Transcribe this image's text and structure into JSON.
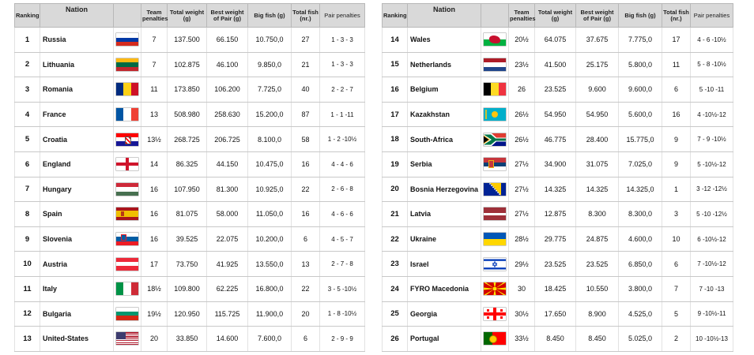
{
  "headers": {
    "ranking": "Ranking",
    "nation": "Nation",
    "team_penalties": "Team penalties",
    "total_weight": "Total weight (g)",
    "best_weight_pair": "Best weight of Pair (g)",
    "big_fish": "Big fish (g)",
    "total_fish": "Total fish (nr.)",
    "pair_penalties": "Pair penalties"
  },
  "left_table": [
    {
      "rank": "1",
      "nation": "Russia",
      "flag": "russia-flag",
      "team_penalties": "7",
      "total_weight": "137.500",
      "best_pair": "66.150",
      "big_fish": "10.750,0",
      "total_fish": "27",
      "pair_penalties": "1 - 3 - 3"
    },
    {
      "rank": "2",
      "nation": "Lithuania",
      "flag": "lithuania-flag",
      "team_penalties": "7",
      "total_weight": "102.875",
      "best_pair": "46.100",
      "big_fish": "9.850,0",
      "total_fish": "21",
      "pair_penalties": "1 - 3 - 3"
    },
    {
      "rank": "3",
      "nation": "Romania",
      "flag": "romania-flag",
      "team_penalties": "11",
      "total_weight": "173.850",
      "best_pair": "106.200",
      "big_fish": "7.725,0",
      "total_fish": "40",
      "pair_penalties": "2 - 2 - 7"
    },
    {
      "rank": "4",
      "nation": "France",
      "flag": "france-flag",
      "team_penalties": "13",
      "total_weight": "508.980",
      "best_pair": "258.630",
      "big_fish": "15.200,0",
      "total_fish": "87",
      "pair_penalties": "1 - 1 -11"
    },
    {
      "rank": "5",
      "nation": "Croatia",
      "flag": "croatia-flag",
      "team_penalties": "13½",
      "total_weight": "268.725",
      "best_pair": "206.725",
      "big_fish": "8.100,0",
      "total_fish": "58",
      "pair_penalties": "1 - 2 -10½"
    },
    {
      "rank": "6",
      "nation": "England",
      "flag": "england-flag",
      "team_penalties": "14",
      "total_weight": "86.325",
      "best_pair": "44.150",
      "big_fish": "10.475,0",
      "total_fish": "16",
      "pair_penalties": "4 - 4 - 6"
    },
    {
      "rank": "7",
      "nation": "Hungary",
      "flag": "hungary-flag",
      "team_penalties": "16",
      "total_weight": "107.950",
      "best_pair": "81.300",
      "big_fish": "10.925,0",
      "total_fish": "22",
      "pair_penalties": "2 - 6 - 8"
    },
    {
      "rank": "8",
      "nation": "Spain",
      "flag": "spain-flag",
      "team_penalties": "16",
      "total_weight": "81.075",
      "best_pair": "58.000",
      "big_fish": "11.050,0",
      "total_fish": "16",
      "pair_penalties": "4 - 6 - 6"
    },
    {
      "rank": "9",
      "nation": "Slovenia",
      "flag": "slovenia-flag",
      "team_penalties": "16",
      "total_weight": "39.525",
      "best_pair": "22.075",
      "big_fish": "10.200,0",
      "total_fish": "6",
      "pair_penalties": "4 - 5 - 7"
    },
    {
      "rank": "10",
      "nation": "Austria",
      "flag": "austria-flag",
      "team_penalties": "17",
      "total_weight": "73.750",
      "best_pair": "41.925",
      "big_fish": "13.550,0",
      "total_fish": "13",
      "pair_penalties": "2 - 7 - 8"
    },
    {
      "rank": "11",
      "nation": "Italy",
      "flag": "italy-flag",
      "team_penalties": "18½",
      "total_weight": "109.800",
      "best_pair": "62.225",
      "big_fish": "16.800,0",
      "total_fish": "22",
      "pair_penalties": "3 - 5 -10½"
    },
    {
      "rank": "12",
      "nation": "Bulgaria",
      "flag": "bulgaria-flag",
      "team_penalties": "19½",
      "total_weight": "120.950",
      "best_pair": "115.725",
      "big_fish": "11.900,0",
      "total_fish": "20",
      "pair_penalties": "1 - 8 -10½"
    },
    {
      "rank": "13",
      "nation": "United-States",
      "flag": "usa-flag",
      "team_penalties": "20",
      "total_weight": "33.850",
      "best_pair": "14.600",
      "big_fish": "7.600,0",
      "total_fish": "6",
      "pair_penalties": "2 - 9 - 9"
    }
  ],
  "right_table": [
    {
      "rank": "14",
      "nation": "Wales",
      "flag": "wales-flag",
      "team_penalties": "20½",
      "total_weight": "64.075",
      "best_pair": "37.675",
      "big_fish": "7.775,0",
      "total_fish": "17",
      "pair_penalties": "4 - 6 -10½"
    },
    {
      "rank": "15",
      "nation": "Netherlands",
      "flag": "netherlands-flag",
      "team_penalties": "23½",
      "total_weight": "41.500",
      "best_pair": "25.175",
      "big_fish": "5.800,0",
      "total_fish": "11",
      "pair_penalties": "5 - 8 -10½"
    },
    {
      "rank": "16",
      "nation": "Belgium",
      "flag": "belgium-flag",
      "team_penalties": "26",
      "total_weight": "23.525",
      "best_pair": "9.600",
      "big_fish": "9.600,0",
      "total_fish": "6",
      "pair_penalties": "5 -10 -11"
    },
    {
      "rank": "17",
      "nation": "Kazakhstan",
      "flag": "kazakhstan-flag",
      "team_penalties": "26½",
      "total_weight": "54.950",
      "best_pair": "54.950",
      "big_fish": "5.600,0",
      "total_fish": "16",
      "pair_penalties": "4 -10½-12"
    },
    {
      "rank": "18",
      "nation": "South-Africa",
      "flag": "south-africa-flag",
      "team_penalties": "26½",
      "total_weight": "46.775",
      "best_pair": "28.400",
      "big_fish": "15.775,0",
      "total_fish": "9",
      "pair_penalties": "7 - 9 -10½"
    },
    {
      "rank": "19",
      "nation": "Serbia",
      "flag": "serbia-flag",
      "team_penalties": "27½",
      "total_weight": "34.900",
      "best_pair": "31.075",
      "big_fish": "7.025,0",
      "total_fish": "9",
      "pair_penalties": "5 -10½-12"
    },
    {
      "rank": "20",
      "nation": "Bosnia Herzegovina",
      "flag": "bosnia-flag",
      "team_penalties": "27½",
      "total_weight": "14.325",
      "best_pair": "14.325",
      "big_fish": "14.325,0",
      "total_fish": "1",
      "pair_penalties": "3 -12 -12½"
    },
    {
      "rank": "21",
      "nation": "Latvia",
      "flag": "latvia-flag",
      "team_penalties": "27½",
      "total_weight": "12.875",
      "best_pair": "8.300",
      "big_fish": "8.300,0",
      "total_fish": "3",
      "pair_penalties": "5 -10 -12½"
    },
    {
      "rank": "22",
      "nation": "Ukraine",
      "flag": "ukraine-flag",
      "team_penalties": "28½",
      "total_weight": "29.775",
      "best_pair": "24.875",
      "big_fish": "4.600,0",
      "total_fish": "10",
      "pair_penalties": "6 -10½-12"
    },
    {
      "rank": "23",
      "nation": "Israel",
      "flag": "israel-flag",
      "team_penalties": "29½",
      "total_weight": "23.525",
      "best_pair": "23.525",
      "big_fish": "6.850,0",
      "total_fish": "6",
      "pair_penalties": "7 -10½-12"
    },
    {
      "rank": "24",
      "nation": "FYRO Macedonia",
      "flag": "macedonia-flag",
      "team_penalties": "30",
      "total_weight": "18.425",
      "best_pair": "10.550",
      "big_fish": "3.800,0",
      "total_fish": "7",
      "pair_penalties": "7 -10 -13"
    },
    {
      "rank": "25",
      "nation": "Georgia",
      "flag": "georgia-flag",
      "team_penalties": "30½",
      "total_weight": "17.650",
      "best_pair": "8.900",
      "big_fish": "4.525,0",
      "total_fish": "5",
      "pair_penalties": "9 -10½-11"
    },
    {
      "rank": "26",
      "nation": "Portugal",
      "flag": "portugal-flag",
      "team_penalties": "33½",
      "total_weight": "8.450",
      "best_pair": "8.450",
      "big_fish": "5.025,0",
      "total_fish": "2",
      "pair_penalties": "10 -10½-13"
    }
  ]
}
